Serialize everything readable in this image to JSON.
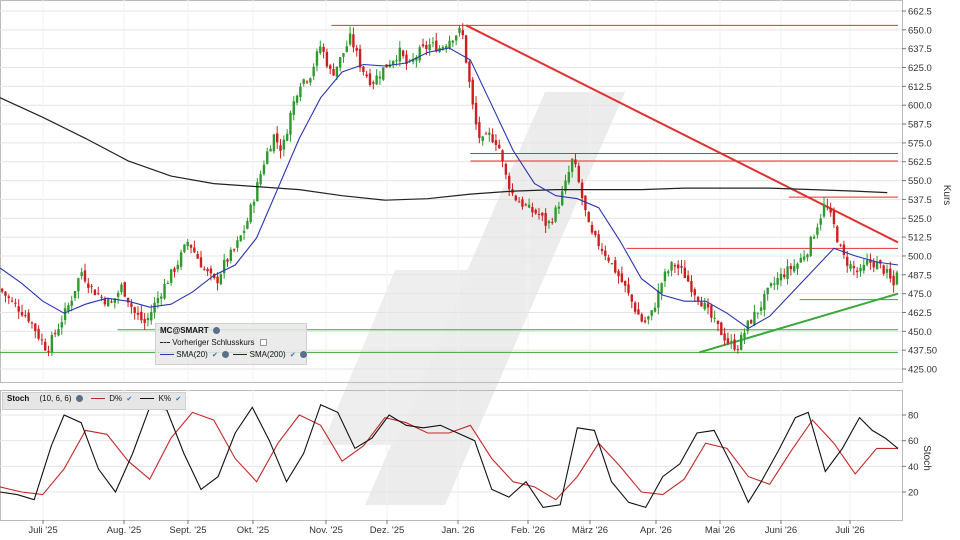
{
  "chart_data": [
    {
      "type": "candlestick",
      "symbol": "MC@SMART",
      "ylabel": "Kurs",
      "ylim": [
        418,
        665
      ],
      "yticks": [
        "662.5",
        "650.0",
        "637.5",
        "625.0",
        "612.5",
        "600.0",
        "587.5",
        "575.0",
        "562.5",
        "550.0",
        "537.5",
        "525.0",
        "512.5",
        "500.0",
        "487.5",
        "475.0",
        "462.5",
        "450.0",
        "437.50",
        "425.00"
      ],
      "x_ticks": [
        "Juli '25",
        "Aug. '25",
        "Sept. '25",
        "Okt. '25",
        "Nov. '25",
        "Dez. '25",
        "Jan. '26",
        "Feb. '26",
        "März '26",
        "Apr. '26",
        "Mai '26",
        "Juni '26",
        "Juli '26"
      ],
      "colors": {
        "up": "#2e9a2e",
        "down": "#cc2020",
        "sma20": "#2a35b0",
        "sma200": "#222222",
        "resistance": "#e23030",
        "support": "#3aa83a"
      },
      "legend": {
        "symbol_label": "MC@SMART",
        "prev_close": "Vorheriger Schlusskurs",
        "sma20": "SMA(20)",
        "sma200": "SMA(200)"
      },
      "close_path": [
        [
          0,
          478
        ],
        [
          5,
          470
        ],
        [
          9,
          465
        ],
        [
          14,
          458
        ],
        [
          18,
          447
        ],
        [
          22,
          438
        ],
        [
          28,
          455
        ],
        [
          33,
          470
        ],
        [
          38,
          490
        ],
        [
          43,
          478
        ],
        [
          48,
          472
        ],
        [
          52,
          468
        ],
        [
          57,
          480
        ],
        [
          63,
          462
        ],
        [
          68,
          455
        ],
        [
          73,
          470
        ],
        [
          78,
          483
        ],
        [
          83,
          495
        ],
        [
          88,
          510
        ],
        [
          92,
          500
        ],
        [
          96,
          490
        ],
        [
          101,
          482
        ],
        [
          105,
          495
        ],
        [
          110,
          505
        ],
        [
          115,
          520
        ],
        [
          120,
          545
        ],
        [
          124,
          565
        ],
        [
          128,
          580
        ],
        [
          132,
          570
        ],
        [
          136,
          595
        ],
        [
          140,
          615
        ],
        [
          145,
          620
        ],
        [
          150,
          640
        ],
        [
          155,
          620
        ],
        [
          159,
          630
        ],
        [
          164,
          645
        ],
        [
          169,
          625
        ],
        [
          174,
          615
        ],
        [
          178,
          622
        ],
        [
          183,
          630
        ],
        [
          187,
          635
        ],
        [
          191,
          625
        ],
        [
          196,
          635
        ],
        [
          201,
          640
        ],
        [
          206,
          638
        ],
        [
          211,
          645
        ],
        [
          216,
          650
        ],
        [
          219,
          620
        ],
        [
          222,
          590
        ],
        [
          225,
          575
        ],
        [
          229,
          580
        ],
        [
          233,
          575
        ],
        [
          236,
          555
        ],
        [
          240,
          540
        ],
        [
          244,
          535
        ],
        [
          248,
          530
        ],
        [
          252,
          528
        ],
        [
          256,
          520
        ],
        [
          260,
          530
        ],
        [
          264,
          545
        ],
        [
          268,
          565
        ],
        [
          272,
          540
        ],
        [
          276,
          515
        ],
        [
          280,
          508
        ],
        [
          284,
          500
        ],
        [
          288,
          490
        ],
        [
          292,
          480
        ],
        [
          297,
          465
        ],
        [
          301,
          455
        ],
        [
          305,
          462
        ],
        [
          310,
          485
        ],
        [
          315,
          495
        ],
        [
          320,
          488
        ],
        [
          324,
          478
        ],
        [
          328,
          470
        ],
        [
          333,
          458
        ],
        [
          337,
          450
        ],
        [
          341,
          442
        ],
        [
          345,
          440
        ],
        [
          350,
          455
        ],
        [
          355,
          465
        ],
        [
          360,
          478
        ],
        [
          364,
          485
        ],
        [
          368,
          490
        ],
        [
          373,
          495
        ],
        [
          378,
          505
        ],
        [
          382,
          520
        ],
        [
          386,
          535
        ],
        [
          390,
          520
        ],
        [
          394,
          500
        ],
        [
          398,
          493
        ],
        [
          402,
          488
        ],
        [
          406,
          496
        ],
        [
          410,
          495
        ],
        [
          414,
          490
        ],
        [
          418,
          480
        ],
        [
          420,
          495
        ]
      ],
      "sma20_path": [
        [
          0,
          492
        ],
        [
          10,
          482
        ],
        [
          20,
          470
        ],
        [
          30,
          462
        ],
        [
          40,
          468
        ],
        [
          50,
          472
        ],
        [
          60,
          470
        ],
        [
          70,
          466
        ],
        [
          80,
          468
        ],
        [
          90,
          476
        ],
        [
          100,
          487
        ],
        [
          110,
          494
        ],
        [
          120,
          512
        ],
        [
          130,
          545
        ],
        [
          140,
          578
        ],
        [
          150,
          605
        ],
        [
          160,
          622
        ],
        [
          170,
          627
        ],
        [
          180,
          626
        ],
        [
          190,
          628
        ],
        [
          200,
          635
        ],
        [
          210,
          638
        ],
        [
          220,
          630
        ],
        [
          230,
          600
        ],
        [
          240,
          570
        ],
        [
          250,
          548
        ],
        [
          260,
          540
        ],
        [
          270,
          538
        ],
        [
          280,
          532
        ],
        [
          290,
          510
        ],
        [
          300,
          485
        ],
        [
          310,
          474
        ],
        [
          320,
          470
        ],
        [
          330,
          470
        ],
        [
          340,
          462
        ],
        [
          350,
          452
        ],
        [
          360,
          460
        ],
        [
          370,
          475
        ],
        [
          380,
          490
        ],
        [
          390,
          505
        ],
        [
          400,
          500
        ],
        [
          410,
          496
        ],
        [
          420,
          494
        ]
      ],
      "sma200_path": [
        [
          0,
          605
        ],
        [
          20,
          592
        ],
        [
          40,
          578
        ],
        [
          60,
          563
        ],
        [
          80,
          553
        ],
        [
          100,
          548
        ],
        [
          120,
          546
        ],
        [
          140,
          544
        ],
        [
          160,
          540
        ],
        [
          180,
          537
        ],
        [
          200,
          538
        ],
        [
          220,
          541
        ],
        [
          240,
          543
        ],
        [
          260,
          544
        ],
        [
          280,
          544
        ],
        [
          300,
          544
        ],
        [
          320,
          545
        ],
        [
          340,
          545
        ],
        [
          360,
          545
        ],
        [
          380,
          544
        ],
        [
          400,
          543
        ],
        [
          415,
          542
        ]
      ],
      "resistance_lines": [
        {
          "from": [
            155,
            653
          ],
          "to": [
            420,
            653
          ]
        },
        {
          "from": [
            220,
            568
          ],
          "to": [
            420,
            568
          ]
        },
        {
          "from": [
            220,
            563
          ],
          "to": [
            420,
            563
          ]
        },
        {
          "from": [
            293,
            505
          ],
          "to": [
            420,
            505
          ]
        },
        {
          "from": [
            369,
            539
          ],
          "to": [
            420,
            539
          ]
        },
        {
          "from": [
            218,
            653
          ],
          "to": [
            420,
            509
          ]
        }
      ],
      "support_lines": [
        {
          "from": [
            55,
            451
          ],
          "to": [
            420,
            451
          ]
        },
        {
          "from": [
            0,
            436
          ],
          "to": [
            420,
            436
          ]
        },
        {
          "from": [
            374,
            471
          ],
          "to": [
            420,
            471
          ]
        },
        {
          "from": [
            327,
            436
          ],
          "to": [
            420,
            475
          ]
        }
      ]
    },
    {
      "type": "line",
      "title": "Stoch",
      "params": "(10, 6, 6)",
      "ylabel": "Stoch",
      "ylim": [
        -5,
        95
      ],
      "yticks": [
        "80",
        "60",
        "40",
        "20"
      ],
      "series": [
        {
          "name": "D%",
          "color": "#c42a2a",
          "values": [
            [
              0,
              24
            ],
            [
              10,
              20
            ],
            [
              20,
              18
            ],
            [
              30,
              38
            ],
            [
              40,
              68
            ],
            [
              50,
              65
            ],
            [
              60,
              44
            ],
            [
              70,
              30
            ],
            [
              80,
              62
            ],
            [
              90,
              82
            ],
            [
              100,
              76
            ],
            [
              110,
              46
            ],
            [
              120,
              28
            ],
            [
              130,
              58
            ],
            [
              140,
              80
            ],
            [
              150,
              72
            ],
            [
              160,
              44
            ],
            [
              170,
              56
            ],
            [
              180,
              78
            ],
            [
              190,
              74
            ],
            [
              200,
              66
            ],
            [
              210,
              66
            ],
            [
              220,
              72
            ],
            [
              230,
              46
            ],
            [
              240,
              28
            ],
            [
              250,
              24
            ],
            [
              260,
              14
            ],
            [
              270,
              32
            ],
            [
              280,
              58
            ],
            [
              290,
              40
            ],
            [
              300,
              20
            ],
            [
              310,
              18
            ],
            [
              320,
              30
            ],
            [
              330,
              58
            ],
            [
              340,
              54
            ],
            [
              350,
              32
            ],
            [
              360,
              26
            ],
            [
              370,
              52
            ],
            [
              380,
              76
            ],
            [
              390,
              58
            ],
            [
              400,
              34
            ],
            [
              410,
              54
            ],
            [
              420,
              54
            ]
          ]
        },
        {
          "name": "K%",
          "color": "#111111",
          "values": [
            [
              0,
              20
            ],
            [
              8,
              18
            ],
            [
              16,
              14
            ],
            [
              24,
              56
            ],
            [
              30,
              80
            ],
            [
              38,
              74
            ],
            [
              46,
              38
            ],
            [
              54,
              20
            ],
            [
              62,
              50
            ],
            [
              70,
              86
            ],
            [
              78,
              84
            ],
            [
              86,
              50
            ],
            [
              94,
              22
            ],
            [
              102,
              32
            ],
            [
              110,
              66
            ],
            [
              118,
              86
            ],
            [
              126,
              60
            ],
            [
              134,
              28
            ],
            [
              142,
              50
            ],
            [
              150,
              88
            ],
            [
              158,
              82
            ],
            [
              166,
              54
            ],
            [
              174,
              62
            ],
            [
              182,
              80
            ],
            [
              190,
              72
            ],
            [
              198,
              70
            ],
            [
              206,
              72
            ],
            [
              214,
              66
            ],
            [
              222,
              60
            ],
            [
              230,
              22
            ],
            [
              238,
              16
            ],
            [
              246,
              28
            ],
            [
              254,
              8
            ],
            [
              262,
              10
            ],
            [
              270,
              70
            ],
            [
              278,
              68
            ],
            [
              286,
              28
            ],
            [
              294,
              12
            ],
            [
              302,
              8
            ],
            [
              310,
              32
            ],
            [
              318,
              42
            ],
            [
              326,
              66
            ],
            [
              334,
              68
            ],
            [
              342,
              42
            ],
            [
              350,
              12
            ],
            [
              356,
              28
            ],
            [
              364,
              52
            ],
            [
              372,
              78
            ],
            [
              378,
              82
            ],
            [
              386,
              36
            ],
            [
              394,
              54
            ],
            [
              402,
              78
            ],
            [
              408,
              68
            ],
            [
              414,
              62
            ],
            [
              420,
              54
            ]
          ]
        }
      ]
    }
  ],
  "stoch_legend": {
    "title": "Stoch",
    "params": "(10, 6, 6)",
    "d_label": "D%",
    "k_label": "K%"
  }
}
